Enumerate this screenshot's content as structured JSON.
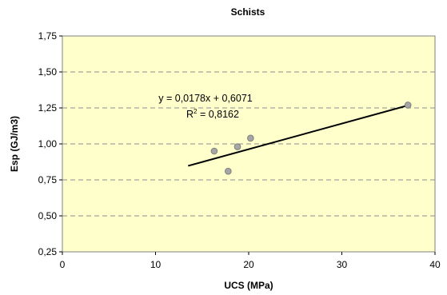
{
  "chart_data": {
    "type": "scatter",
    "title": "Schists",
    "xlabel": "UCS (MPa)",
    "ylabel": "Esp (GJ/m3)",
    "xlim": [
      0,
      40
    ],
    "ylim": [
      0.25,
      1.75
    ],
    "x_ticks": [
      0,
      10,
      20,
      30,
      40
    ],
    "x_tick_labels": [
      "0",
      "10",
      "20",
      "30",
      "40"
    ],
    "y_ticks": [
      0.25,
      0.5,
      0.75,
      1.0,
      1.25,
      1.5,
      1.75
    ],
    "y_tick_labels": [
      "0,25",
      "0,50",
      "0,75",
      "1,00",
      "1,25",
      "1,50",
      "1,75"
    ],
    "grid": "horizontal dashed",
    "points": [
      {
        "x": 16.3,
        "y": 0.95
      },
      {
        "x": 17.8,
        "y": 0.81
      },
      {
        "x": 18.8,
        "y": 0.98
      },
      {
        "x": 20.2,
        "y": 1.04
      },
      {
        "x": 37.1,
        "y": 1.27
      }
    ],
    "trendline": {
      "slope": 0.0178,
      "intercept": 0.6071,
      "x_range": [
        13.5,
        37.1
      ],
      "equation": "y = 0,0178x + 0,6071",
      "r2_prefix": "R",
      "r2_sup": "2",
      "r2_value": " = 0,8162"
    },
    "colors": {
      "plot_bg": "#ffffcc",
      "point_fill": "#a6a6a6",
      "point_stroke": "#7f7f7f",
      "trendline": "#000000",
      "grid": "#8c8c8c"
    }
  }
}
